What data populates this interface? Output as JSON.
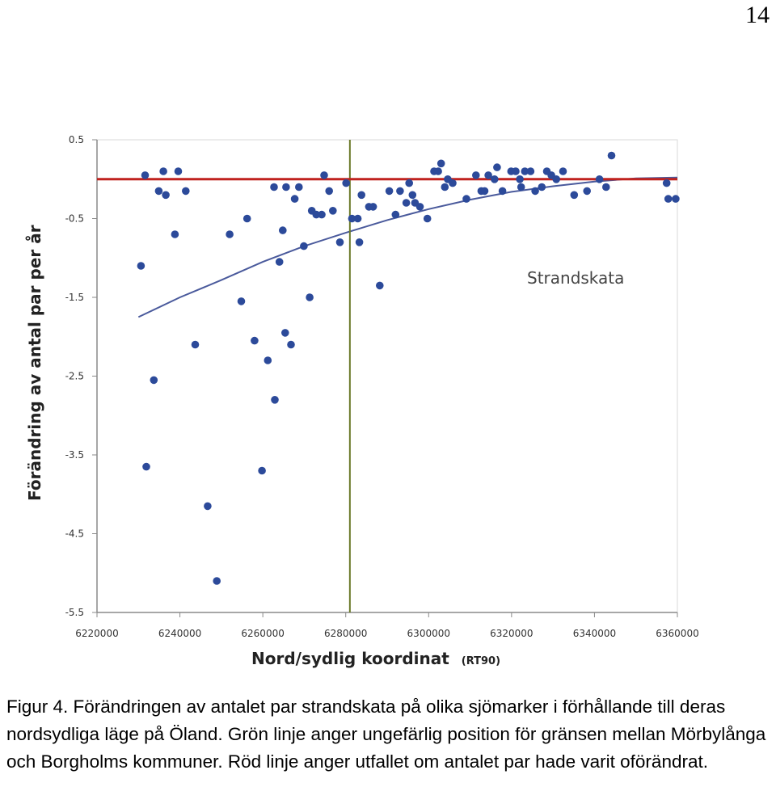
{
  "page_number": "14",
  "caption": "Figur 4. Förändringen av antalet par strandskata på olika sjömarker i förhållande till deras nordsydliga läge på Öland. Grön linje anger ungefärlig position för gränsen mellan Mörbylånga och Borgholms kommuner. Röd linje anger utfallet om antalet par hade varit oförändrat.",
  "chart_data": {
    "type": "scatter",
    "title": "",
    "annotation": "Strandskata",
    "xlabel": "Nord/sydlig koordinat",
    "xlabel_unit": "(RT90)",
    "ylabel": "Förändring av antal par per år",
    "xlim": [
      6220000,
      6360000
    ],
    "ylim": [
      -5.5,
      0.5
    ],
    "x_ticks": [
      6220000,
      6240000,
      6260000,
      6280000,
      6300000,
      6320000,
      6340000,
      6360000
    ],
    "x_tick_labels": [
      "6220000",
      "6240000",
      "6260000",
      "6280000",
      "6300000",
      "6320000",
      "6340000",
      "6360000"
    ],
    "y_ticks": [
      0.5,
      -0.5,
      -1.5,
      -2.5,
      -3.5,
      -4.5,
      -5.5
    ],
    "y_tick_labels": [
      "0.5",
      "-0.5",
      "-1.5",
      "-2.5",
      "-3.5",
      "-4.5",
      "-5.5"
    ],
    "grid": false,
    "colors": {
      "points": "#2c4a9a",
      "trend": "#4a5a9c",
      "reference": "#c0221e",
      "boundary": "#6b7a2a",
      "plot_background": "#ffffff",
      "axis": "#8a8a8a"
    },
    "reference_line_y": 0,
    "boundary_x": 6281000,
    "points": [
      [
        6230600,
        -1.1
      ],
      [
        6231600,
        0.05
      ],
      [
        6233700,
        -2.55
      ],
      [
        6231900,
        -3.65
      ],
      [
        6234900,
        -0.15
      ],
      [
        6236000,
        0.1
      ],
      [
        6236600,
        -0.2
      ],
      [
        6238800,
        -0.7
      ],
      [
        6239600,
        0.1
      ],
      [
        6241400,
        -0.15
      ],
      [
        6243700,
        -2.1
      ],
      [
        6246700,
        -4.15
      ],
      [
        6248900,
        -5.1
      ],
      [
        6252000,
        -0.7
      ],
      [
        6254800,
        -1.55
      ],
      [
        6256200,
        -0.5
      ],
      [
        6258000,
        -2.05
      ],
      [
        6259800,
        -3.7
      ],
      [
        6261200,
        -2.3
      ],
      [
        6262900,
        -2.8
      ],
      [
        6262700,
        -0.1
      ],
      [
        6264000,
        -1.05
      ],
      [
        6264800,
        -0.65
      ],
      [
        6265400,
        -1.95
      ],
      [
        6265600,
        -0.1
      ],
      [
        6266800,
        -2.1
      ],
      [
        6267700,
        -0.25
      ],
      [
        6268700,
        -0.1
      ],
      [
        6269900,
        -0.85
      ],
      [
        6271300,
        -1.5
      ],
      [
        6271800,
        -0.4
      ],
      [
        6272900,
        -0.45
      ],
      [
        6274200,
        -0.45
      ],
      [
        6274800,
        0.05
      ],
      [
        6276000,
        -0.15
      ],
      [
        6276900,
        -0.4
      ],
      [
        6278600,
        -0.8
      ],
      [
        6280100,
        -0.05
      ],
      [
        6281500,
        -0.5
      ],
      [
        6282900,
        -0.5
      ],
      [
        6283300,
        -0.8
      ],
      [
        6283800,
        -0.2
      ],
      [
        6285600,
        -0.35
      ],
      [
        6286600,
        -0.35
      ],
      [
        6288200,
        -1.35
      ],
      [
        6290500,
        -0.15
      ],
      [
        6292000,
        -0.45
      ],
      [
        6293100,
        -0.15
      ],
      [
        6294600,
        -0.3
      ],
      [
        6295300,
        -0.05
      ],
      [
        6296100,
        -0.2
      ],
      [
        6296700,
        -0.3
      ],
      [
        6297900,
        -0.35
      ],
      [
        6299700,
        -0.5
      ],
      [
        6301300,
        0.1
      ],
      [
        6302300,
        0.1
      ],
      [
        6303000,
        0.2
      ],
      [
        6303900,
        -0.1
      ],
      [
        6304600,
        0.0
      ],
      [
        6305800,
        -0.05
      ],
      [
        6309100,
        -0.25
      ],
      [
        6311400,
        0.05
      ],
      [
        6312700,
        -0.15
      ],
      [
        6313500,
        -0.15
      ],
      [
        6314400,
        0.05
      ],
      [
        6315900,
        0.0
      ],
      [
        6316500,
        0.15
      ],
      [
        6317800,
        -0.15
      ],
      [
        6319900,
        0.1
      ],
      [
        6321000,
        0.1
      ],
      [
        6322000,
        0.0
      ],
      [
        6322300,
        -0.1
      ],
      [
        6323200,
        0.1
      ],
      [
        6324600,
        0.1
      ],
      [
        6325700,
        -0.15
      ],
      [
        6327300,
        -0.1
      ],
      [
        6328500,
        0.1
      ],
      [
        6329600,
        0.05
      ],
      [
        6330800,
        0.0
      ],
      [
        6332400,
        0.1
      ],
      [
        6335100,
        -0.2
      ],
      [
        6338200,
        -0.15
      ],
      [
        6341200,
        0.0
      ],
      [
        6342800,
        -0.1
      ],
      [
        6344100,
        0.3
      ],
      [
        6357400,
        -0.05
      ],
      [
        6357800,
        -0.25
      ],
      [
        6359600,
        -0.25
      ]
    ],
    "trend_curve": [
      [
        6230000,
        -1.75
      ],
      [
        6240000,
        -1.5
      ],
      [
        6250000,
        -1.28
      ],
      [
        6260000,
        -1.05
      ],
      [
        6270000,
        -0.85
      ],
      [
        6280000,
        -0.68
      ],
      [
        6290000,
        -0.52
      ],
      [
        6300000,
        -0.38
      ],
      [
        6310000,
        -0.26
      ],
      [
        6320000,
        -0.16
      ],
      [
        6330000,
        -0.09
      ],
      [
        6340000,
        -0.03
      ],
      [
        6350000,
        0.01
      ],
      [
        6360000,
        0.02
      ]
    ]
  }
}
